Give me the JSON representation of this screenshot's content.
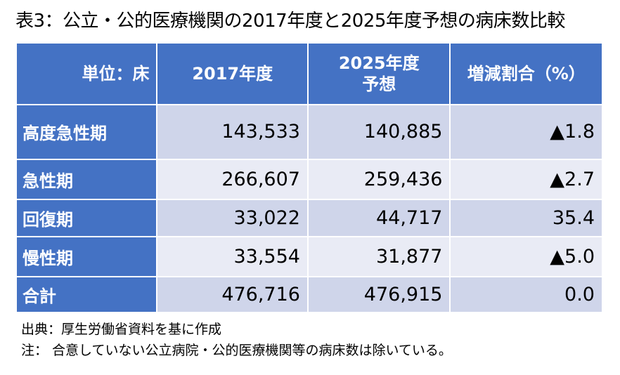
{
  "title": "表3：公立・公的医療機関の2017年度と2025年度予想の病床数比較",
  "table": {
    "headers": [
      "単位：床",
      "2017年度",
      "2025年度\n予想",
      "増減割合（%）"
    ],
    "rows": [
      {
        "label": "高度急性期",
        "y2017": "143,533",
        "y2025": "140,885",
        "change": "▲1.8"
      },
      {
        "label": "急性期",
        "y2017": "266,607",
        "y2025": "259,436",
        "change": "▲2.7"
      },
      {
        "label": "回復期",
        "y2017": "33,022",
        "y2025": "44,717",
        "change": "35.4"
      },
      {
        "label": "慢性期",
        "y2017": "33,554",
        "y2025": "31,877",
        "change": "▲5.0"
      },
      {
        "label": "合計",
        "y2017": "476,716",
        "y2025": "476,915",
        "change": "0.0"
      }
    ]
  },
  "notes": {
    "source": "出典：厚生労働省資料を基に作成",
    "note": "注： 合意していない公立病院・公的医療機関等の病床数は除いている。"
  },
  "colors": {
    "header_bg": "#4472c4",
    "row_odd_bg": "#cfd5ea",
    "row_even_bg": "#e9ebf5"
  }
}
